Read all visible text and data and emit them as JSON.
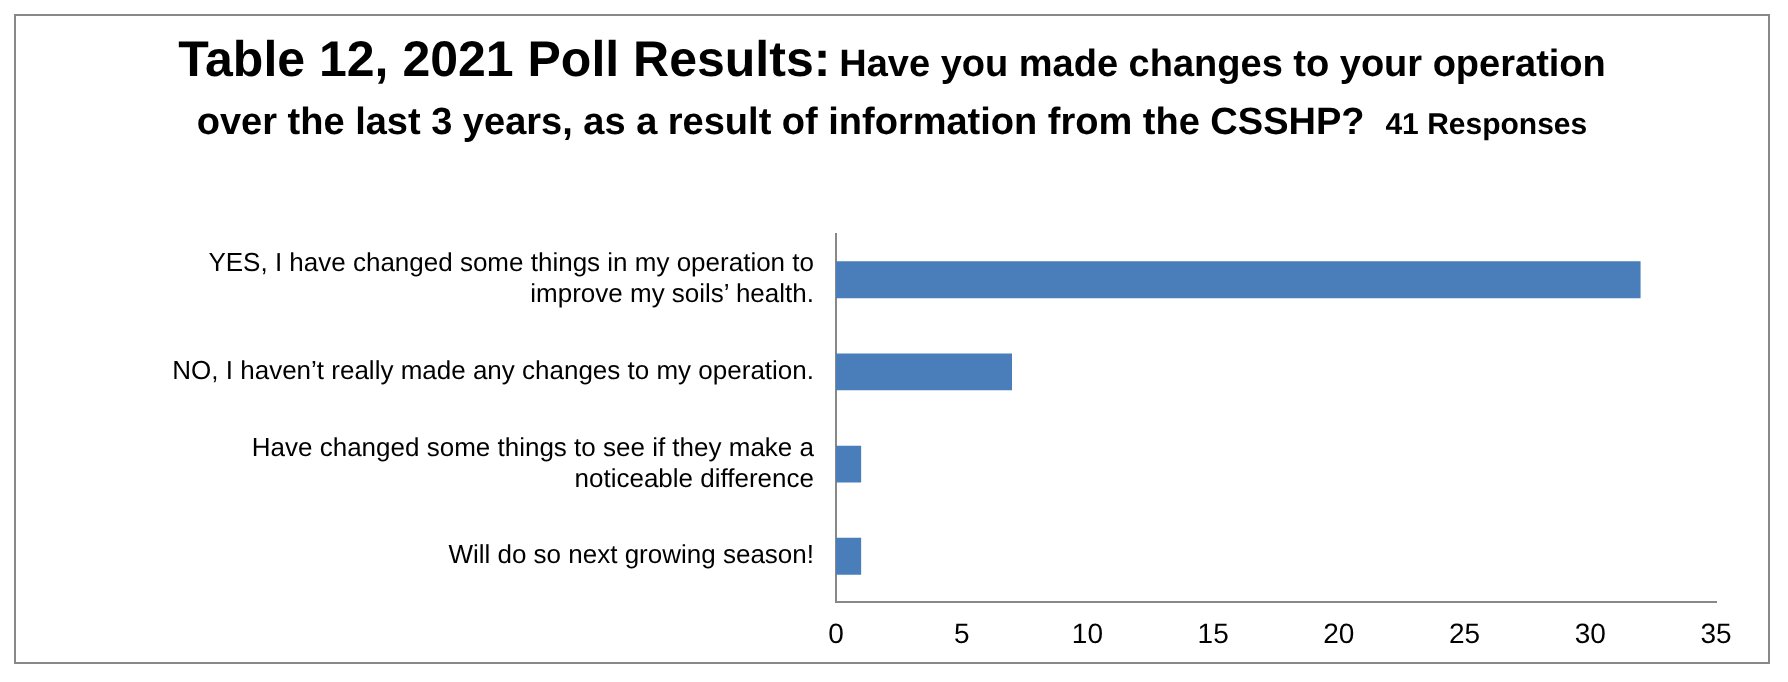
{
  "chart_data": {
    "type": "bar",
    "orientation": "horizontal",
    "title": "Table 12, 2021 Poll Results:",
    "subtitle": "Have you made changes to your operation over the last 3 years, as a result of information from the CSSHP?",
    "annotations": [
      "41 Responses"
    ],
    "categories": [
      "YES, I have changed some things in my operation to improve my soils’ health.",
      "NO, I haven’t really made any changes to my operation.",
      "Have changed some things to see if they make a noticeable difference",
      "Will do so next growing season!"
    ],
    "values": [
      32,
      7,
      1,
      1
    ],
    "color": "#4a7ebb",
    "xlim": [
      0,
      35
    ],
    "xticks": [
      0,
      5,
      10,
      15,
      20,
      25,
      30,
      35
    ],
    "grid": false,
    "legend": false
  }
}
